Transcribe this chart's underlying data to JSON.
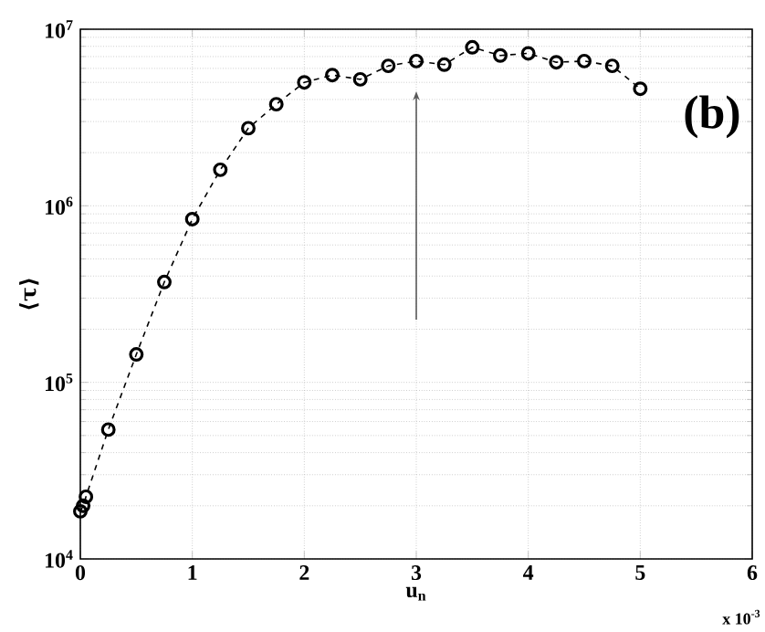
{
  "chart_data": {
    "type": "line",
    "xlabel": "u$_{n}$",
    "ylabel": "⟨τ⟩",
    "annotations": [
      "(b)",
      "x 10$^{-3}$"
    ],
    "x": [
      0,
      0.025,
      0.05,
      0.25,
      0.5,
      0.75,
      1.0,
      1.25,
      1.5,
      1.75,
      2.0,
      2.25,
      2.5,
      2.75,
      3.0,
      3.25,
      3.5,
      3.75,
      4.0,
      4.25,
      4.5,
      4.75,
      5.0
    ],
    "series": [
      {
        "color": "#000000",
        "values": [
          18600,
          20000,
          22500,
          54000,
          144000,
          370000,
          840000,
          1600000,
          2750000,
          3760000,
          5000000,
          5500000,
          5200000,
          6200000,
          6600000,
          6300000,
          7900000,
          7100000,
          7300000,
          6500000,
          6600000,
          6200000,
          4600000
        ]
      }
    ],
    "xlim": [
      0,
      6
    ],
    "xticks": [
      0,
      1,
      2,
      3,
      4,
      5,
      6
    ],
    "ylim": [
      10000,
      10000000
    ],
    "yticks": [
      {
        "value": 10000,
        "label": "10$^{4}$"
      },
      {
        "value": 100000,
        "label": "10$^{5}$"
      },
      {
        "value": 1000000,
        "label": "10$^{6}$"
      },
      {
        "value": 10000000,
        "label": "10$^{7}$"
      }
    ],
    "log": "y",
    "grid": true,
    "marker": "circle",
    "line_style": "dashed"
  }
}
